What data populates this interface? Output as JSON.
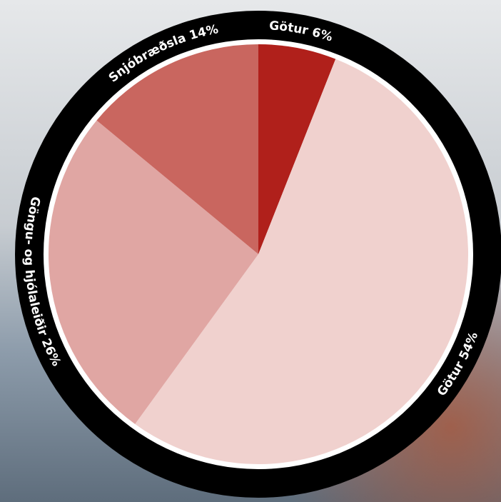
{
  "chart_data": {
    "type": "pie",
    "categories": [
      "Götur",
      "Götur",
      "Göngu- og hjólaleiðir",
      "Snjóbræðsla"
    ],
    "values": [
      6,
      54,
      26,
      14
    ],
    "value_labels": [
      "6%",
      "54%",
      "26%",
      "14%"
    ],
    "colors": [
      "#b0201b",
      "#f0d1ce",
      "#e0a6a3",
      "#c9665f"
    ]
  }
}
